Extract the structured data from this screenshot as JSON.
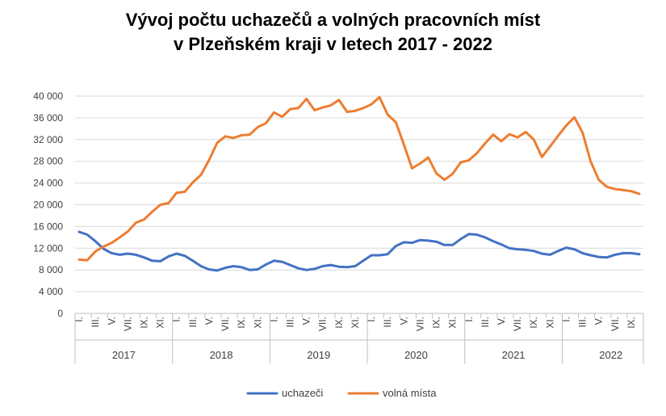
{
  "chart_data": {
    "type": "line",
    "title": "Vývoj počtu uchazečů a volných pracovních míst",
    "subtitle": "v Plzeňském kraji v letech 2017 - 2022",
    "ylim": [
      0,
      40000
    ],
    "yticks": [
      0,
      4000,
      8000,
      12000,
      16000,
      20000,
      24000,
      28000,
      32000,
      36000,
      40000
    ],
    "ytick_labels": [
      "0",
      "4 000",
      "8 000",
      "12 000",
      "16 000",
      "20 000",
      "24 000",
      "28 000",
      "32 000",
      "36 000",
      "40 000"
    ],
    "grid": true,
    "legend_position": "bottom",
    "month_labels": [
      "I.",
      "III.",
      "V.",
      "VII.",
      "IX.",
      "XI."
    ],
    "month_labels_2022": [
      "I.",
      "III.",
      "V.",
      "VII.",
      "IX."
    ],
    "years": [
      "2017",
      "2018",
      "2019",
      "2020",
      "2021",
      "2022"
    ],
    "series": [
      {
        "name": "uchazeči",
        "color": "#4472C4",
        "values": [
          15000,
          14500,
          13300,
          11900,
          11100,
          10800,
          11000,
          10800,
          10300,
          9700,
          9600,
          10500,
          11000,
          10600,
          9700,
          8700,
          8100,
          7900,
          8400,
          8700,
          8500,
          8000,
          8100,
          9000,
          9700,
          9500,
          8900,
          8300,
          8000,
          8200,
          8700,
          8900,
          8600,
          8500,
          8700,
          9700,
          10700,
          10700,
          10900,
          12400,
          13100,
          13000,
          13500,
          13400,
          13200,
          12600,
          12600,
          13700,
          14600,
          14500,
          14000,
          13300,
          12700,
          12000,
          11800,
          11700,
          11500,
          11000,
          10800,
          11500,
          12100,
          11800,
          11100,
          10700,
          10400,
          10300,
          10800,
          11100,
          11100,
          10900
        ]
      },
      {
        "name": "volná místa",
        "color": "#ED7D31",
        "values": [
          9900,
          9800,
          11400,
          12300,
          13000,
          14000,
          15100,
          16700,
          17300,
          18700,
          20000,
          20300,
          22200,
          22400,
          24100,
          25500,
          28200,
          31400,
          32600,
          32300,
          32800,
          32900,
          34300,
          35000,
          37000,
          36200,
          37600,
          37800,
          39500,
          37400,
          37900,
          38300,
          39300,
          37100,
          37300,
          37800,
          38500,
          39800,
          36600,
          35200,
          31100,
          26700,
          27600,
          28700,
          25800,
          24600,
          25700,
          27800,
          28200,
          29500,
          31300,
          32900,
          31700,
          33000,
          32400,
          33400,
          32000,
          28800,
          30700,
          32700,
          34600,
          36100,
          33300,
          28000,
          24600,
          23300,
          22900,
          22700,
          22500,
          22000
        ]
      }
    ]
  }
}
